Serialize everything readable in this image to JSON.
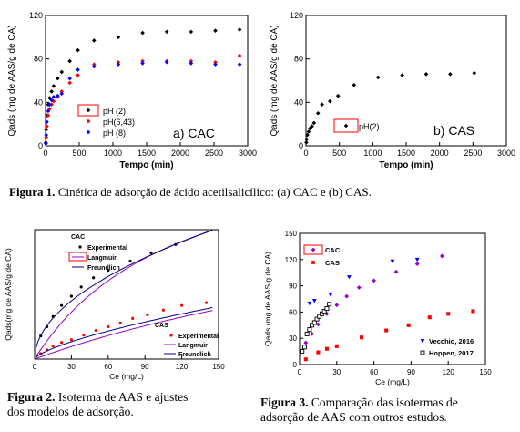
{
  "captions": {
    "fig1_label": "Figura 1.",
    "fig1_text": "Cinética de adsorção de ácido acetilsalicílico: (a) CAC e (b) CAS.",
    "fig2_label": "Figura 2.",
    "fig2_line1_rest": "Isoterma de AAS e ajustes",
    "fig2_line2": "dos modelos de adsorção.",
    "fig3_label": "Figura 3.",
    "fig3_line1_rest": "Comparação das isotermas de",
    "fig3_line2": "adsorção de AAS com outros estudos."
  },
  "colors": {
    "black": "#000000",
    "red": "#ff0000",
    "blue": "#0000ff",
    "purple": "#9900cc",
    "navy": "#000080"
  },
  "chart_data": [
    {
      "id": "a",
      "type": "scatter",
      "panel_label": "a) CAC",
      "xlabel": "Tempo (min)",
      "ylabel": "Qads  (mg de AAS/g de CA)",
      "xlim": [
        0,
        3000
      ],
      "ylim": [
        0,
        120
      ],
      "xticks": [
        0,
        500,
        1000,
        1500,
        2000,
        2500,
        3000
      ],
      "yticks": [
        0,
        40,
        80,
        120
      ],
      "legend_position": "inside-center",
      "series": [
        {
          "name": "pH (2)",
          "color": "#000000",
          "x": [
            5,
            10,
            20,
            40,
            60,
            90,
            120,
            180,
            240,
            360,
            480,
            720,
            1080,
            1440,
            1800,
            2160,
            2520,
            2880
          ],
          "y": [
            3,
            15,
            28,
            38,
            44,
            50,
            55,
            62,
            68,
            78,
            88,
            97,
            100,
            104,
            105,
            105,
            106,
            107
          ]
        },
        {
          "name": "pH(6,43)",
          "color": "#ff0000",
          "x": [
            5,
            10,
            20,
            40,
            60,
            90,
            120,
            180,
            240,
            360,
            480,
            720,
            1080,
            1440,
            1800,
            2160,
            2520,
            2880
          ],
          "y": [
            2,
            8,
            18,
            28,
            34,
            38,
            41,
            45,
            50,
            58,
            65,
            75,
            77,
            78,
            78,
            78,
            77,
            83
          ]
        },
        {
          "name": "pH (8)",
          "color": "#0000ff",
          "x": [
            5,
            10,
            20,
            40,
            60,
            90,
            120,
            180,
            240,
            360,
            480,
            720,
            1080,
            1440,
            1800,
            2160,
            2520,
            2880
          ],
          "y": [
            2,
            10,
            22,
            32,
            38,
            42,
            45,
            46,
            48,
            62,
            70,
            73,
            75,
            76,
            77,
            76,
            75,
            75
          ]
        }
      ]
    },
    {
      "id": "b",
      "type": "scatter",
      "panel_label": "b) CAS",
      "xlabel": "Tempo (min)",
      "ylabel": "Qads  (mg de AAS/g de CA)",
      "xlim": [
        0,
        3000
      ],
      "ylim": [
        0,
        120
      ],
      "xticks": [
        0,
        500,
        1000,
        1500,
        2000,
        2500,
        3000
      ],
      "yticks": [
        0,
        40,
        80,
        120
      ],
      "legend_position": "middle-left",
      "series": [
        {
          "name": "pH(2)",
          "color": "#000000",
          "x": [
            5,
            10,
            20,
            40,
            60,
            90,
            120,
            180,
            240,
            360,
            480,
            720,
            1080,
            1440,
            1800,
            2160,
            2520
          ],
          "y": [
            3,
            6,
            10,
            13,
            16,
            18,
            21,
            30,
            38,
            41,
            46,
            56,
            63,
            65,
            66,
            66,
            67
          ]
        }
      ]
    },
    {
      "id": "fig2",
      "type": "scatter",
      "xlabel": "Ce (mg/L)",
      "ylabel": "Qads(mg de AAS/g de CA)",
      "xlim": [
        0,
        150
      ],
      "ylim": [
        0,
        140
      ],
      "xticks": [
        0,
        30,
        60,
        90,
        120,
        150
      ],
      "group_labels": {
        "cac": "CAC",
        "cas": "CAS"
      },
      "legends": {
        "cac": [
          "Experimental",
          "Langmuir",
          "Freundlich"
        ],
        "cas": [
          "Experimental",
          "Langmuir",
          "Freundlich"
        ]
      },
      "series": [
        {
          "name": "Experimental",
          "group": "CAC",
          "kind": "points",
          "color": "#000000",
          "x": [
            5,
            10,
            15,
            22,
            30,
            38,
            48,
            60,
            78,
            95,
            115
          ],
          "y": [
            25,
            35,
            46,
            58,
            68,
            78,
            88,
            96,
            106,
            115,
            124
          ]
        },
        {
          "name": "Langmuir",
          "group": "CAC",
          "kind": "langmuir",
          "color": "#9900cc",
          "qmax": 255,
          "kl": 0.0083
        },
        {
          "name": "Freundlich",
          "group": "CAC",
          "kind": "freundlich",
          "color": "#000080",
          "kf": 11.3,
          "n": 1.98
        },
        {
          "name": "Experimental",
          "group": "CAS",
          "kind": "points",
          "color": "#ff0000",
          "x": [
            5,
            10,
            15,
            22,
            30,
            40,
            50,
            60,
            70,
            80,
            92,
            105,
            120,
            140
          ],
          "y": [
            6,
            10,
            14,
            18,
            21,
            26,
            31,
            35,
            39,
            44,
            48,
            53,
            58,
            61
          ]
        },
        {
          "name": "Langmuir",
          "group": "CAS",
          "kind": "langmuir",
          "color": "#9900cc",
          "qmax": 210,
          "kl": 0.0023
        },
        {
          "name": "Freundlich",
          "group": "CAS",
          "kind": "freundlich",
          "color": "#000080",
          "kf": 1.8,
          "n": 1.45
        }
      ]
    },
    {
      "id": "fig3",
      "type": "scatter",
      "xlabel": "Ce (mg/L)",
      "ylabel": "Qads (mg de AAS/g de CA)",
      "xlim": [
        0,
        150
      ],
      "ylim": [
        0,
        150
      ],
      "xticks": [
        0,
        30,
        60,
        90,
        120,
        150
      ],
      "yticks": [
        0,
        30,
        60,
        90,
        120,
        150
      ],
      "series": [
        {
          "name": "CAC",
          "marker": "diamond",
          "color": "#9900cc",
          "x": [
            5,
            10,
            15,
            22,
            30,
            38,
            48,
            60,
            78,
            95,
            115
          ],
          "y": [
            25,
            35,
            46,
            58,
            68,
            78,
            88,
            96,
            106,
            115,
            124
          ]
        },
        {
          "name": "CAS",
          "marker": "square",
          "color": "#ff0000",
          "x": [
            5,
            15,
            22,
            30,
            50,
            70,
            88,
            105,
            120,
            140
          ],
          "y": [
            6,
            14,
            18,
            21,
            31,
            39,
            45,
            54,
            58,
            61
          ]
        },
        {
          "name": "Vecchio, 2016",
          "marker": "triangle-down",
          "color": "#0000ff",
          "x": [
            8,
            12,
            25,
            40,
            75,
            95
          ],
          "y": [
            70,
            73,
            80,
            100,
            118,
            120
          ]
        },
        {
          "name": "Hoppen, 2017",
          "marker": "open-square",
          "color": "#000000",
          "x": [
            2,
            4,
            6,
            8,
            10,
            12,
            14,
            16,
            18,
            20,
            22,
            24
          ],
          "y": [
            15,
            20,
            35,
            40,
            45,
            48,
            52,
            55,
            58,
            61,
            64,
            69
          ]
        }
      ]
    }
  ]
}
